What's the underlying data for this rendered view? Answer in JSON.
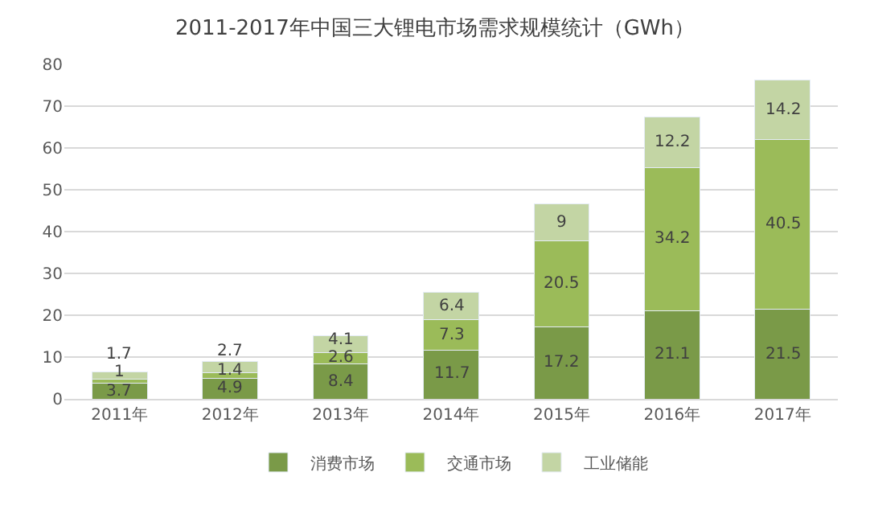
{
  "chart_data": {
    "type": "bar",
    "stacked": true,
    "title": "2011-2017年中国三大锂电市场需求规模统计（GWh）",
    "categories": [
      "2011年",
      "2012年",
      "2013年",
      "2014年",
      "2015年",
      "2016年",
      "2017年"
    ],
    "series": [
      {
        "name": "消费市场",
        "color": "#7a9a48",
        "values": [
          3.7,
          4.9,
          8.4,
          11.7,
          17.2,
          21.1,
          21.5
        ]
      },
      {
        "name": "交通市场",
        "color": "#9bbb59",
        "values": [
          1,
          1.4,
          2.6,
          7.3,
          20.5,
          34.2,
          40.5
        ]
      },
      {
        "name": "工业储能",
        "color": "#c3d5a4",
        "values": [
          1.7,
          2.7,
          4.1,
          6.4,
          9,
          12.2,
          14.2
        ]
      }
    ],
    "ylim": [
      0,
      80
    ],
    "yticks": [
      0,
      10,
      20,
      30,
      40,
      50,
      60,
      70,
      80
    ],
    "grid": "y",
    "legend": "bottom",
    "data_labels": true
  }
}
